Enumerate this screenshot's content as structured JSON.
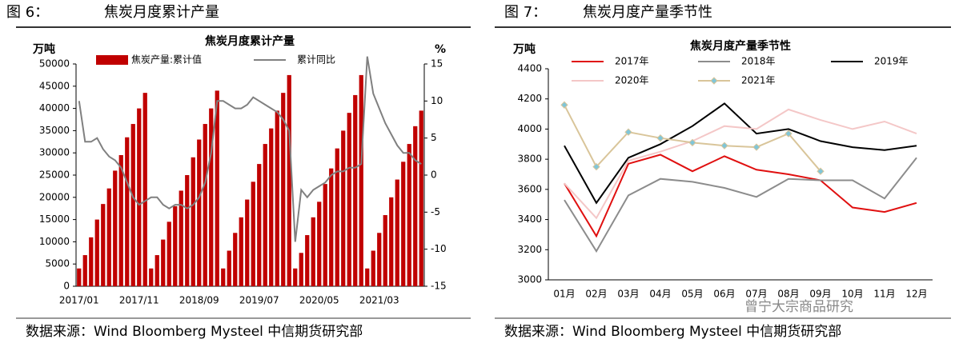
{
  "figures": [
    {
      "label": "图 6：",
      "title": "焦炭月度累计产量",
      "source": "数据来源：Wind Bloomberg Mysteel 中信期货研究部"
    },
    {
      "label": "图 7：",
      "title": "焦炭月度产量季节性",
      "source": "数据来源：Wind Bloomberg Mysteel 中信期货研究部"
    }
  ],
  "watermark": "曾宁大宗商品研究",
  "chart_data": [
    {
      "type": "bar",
      "title": "焦炭月度累计产量",
      "y_label": "万吨",
      "y2_label": "%",
      "categories": [
        "2017/01",
        null,
        null,
        null,
        null,
        null,
        null,
        null,
        null,
        null,
        "2017/11",
        null,
        null,
        null,
        null,
        null,
        null,
        null,
        null,
        null,
        "2018/09",
        null,
        null,
        null,
        null,
        null,
        null,
        null,
        null,
        null,
        "2019/07",
        null,
        null,
        null,
        null,
        null,
        null,
        null,
        null,
        null,
        "2020/05",
        null,
        null,
        null,
        null,
        null,
        null,
        null,
        null,
        null,
        "2021/03",
        null,
        null,
        null,
        null,
        null,
        null,
        null
      ],
      "series": [
        {
          "name": "焦炭产量:累计值",
          "color": "#c00000",
          "values": [
            4000,
            7000,
            11000,
            15000,
            18500,
            22000,
            26000,
            29500,
            33500,
            36500,
            40000,
            43500,
            4000,
            7000,
            10500,
            14500,
            18000,
            21500,
            25000,
            29000,
            33000,
            36500,
            40000,
            44000,
            4000,
            8000,
            12000,
            15500,
            19500,
            23500,
            27500,
            32000,
            35500,
            39500,
            43500,
            47500,
            4000,
            7500,
            11500,
            15500,
            19000,
            23000,
            26500,
            31000,
            35000,
            39000,
            43000,
            47500,
            4000,
            8000,
            12000,
            16000,
            20000,
            24000,
            28000,
            32000,
            36000,
            39500
          ]
        },
        {
          "name": "累计同比",
          "color": "#808080",
          "axis": "y2",
          "values": [
            10,
            4.5,
            4.5,
            5,
            3.5,
            2.5,
            2,
            1,
            -1,
            -3,
            -4,
            -3.5,
            -3,
            -3,
            -4,
            -4.5,
            -4,
            -4,
            -4.5,
            -4,
            -3,
            -1,
            3,
            10,
            10,
            9.5,
            9,
            9,
            9.5,
            10.5,
            10,
            9.5,
            9,
            8.5,
            7.5,
            6,
            -9,
            -2,
            -3,
            -2,
            -1.5,
            -1,
            0,
            0.5,
            0.5,
            1,
            1,
            1.5,
            16,
            11,
            9,
            7,
            5.5,
            4,
            3,
            3,
            2,
            1.5
          ]
        }
      ],
      "ylim": [
        0,
        50000
      ],
      "yticks": [
        0,
        5000,
        10000,
        15000,
        20000,
        25000,
        30000,
        35000,
        40000,
        45000,
        50000
      ],
      "y2lim": [
        -15,
        15
      ],
      "y2ticks": [
        -15,
        -10,
        -5,
        0,
        5,
        10,
        15
      ],
      "legend": "top"
    },
    {
      "type": "line",
      "title": "焦炭月度产量季节性",
      "y_label": "万吨",
      "categories": [
        "01月",
        "02月",
        "03月",
        "04月",
        "05月",
        "06月",
        "07月",
        "08月",
        "09月",
        "10月",
        "11月",
        "12月"
      ],
      "series": [
        {
          "name": "2017年",
          "color": "#e01010",
          "values": [
            3640,
            3290,
            3770,
            3830,
            3720,
            3820,
            3730,
            3700,
            3660,
            3480,
            3450,
            3510
          ]
        },
        {
          "name": "2018年",
          "color": "#8c8c8c",
          "values": [
            3530,
            3190,
            3560,
            3670,
            3650,
            3610,
            3550,
            3670,
            3660,
            3660,
            3540,
            3810
          ]
        },
        {
          "name": "2019年",
          "color": "#000000",
          "values": [
            3890,
            3510,
            3810,
            3900,
            4020,
            4170,
            3970,
            4000,
            3920,
            3880,
            3860,
            3890
          ]
        },
        {
          "name": "2020年",
          "color": "#f4c7c7",
          "values": [
            3640,
            3410,
            3790,
            3850,
            3920,
            4020,
            4000,
            4130,
            4060,
            4000,
            4050,
            3970
          ]
        },
        {
          "name": "2021年",
          "color": "#d9c59a",
          "marker": "diamond",
          "marker_color": "#7fc6d9",
          "values": [
            4160,
            3750,
            3980,
            3940,
            3910,
            3890,
            3880,
            3970,
            3720,
            null,
            null,
            null
          ]
        }
      ],
      "ylim": [
        3000,
        4400
      ],
      "yticks": [
        3000,
        3200,
        3400,
        3600,
        3800,
        4000,
        4200,
        4400
      ],
      "legend": "upper left"
    }
  ]
}
